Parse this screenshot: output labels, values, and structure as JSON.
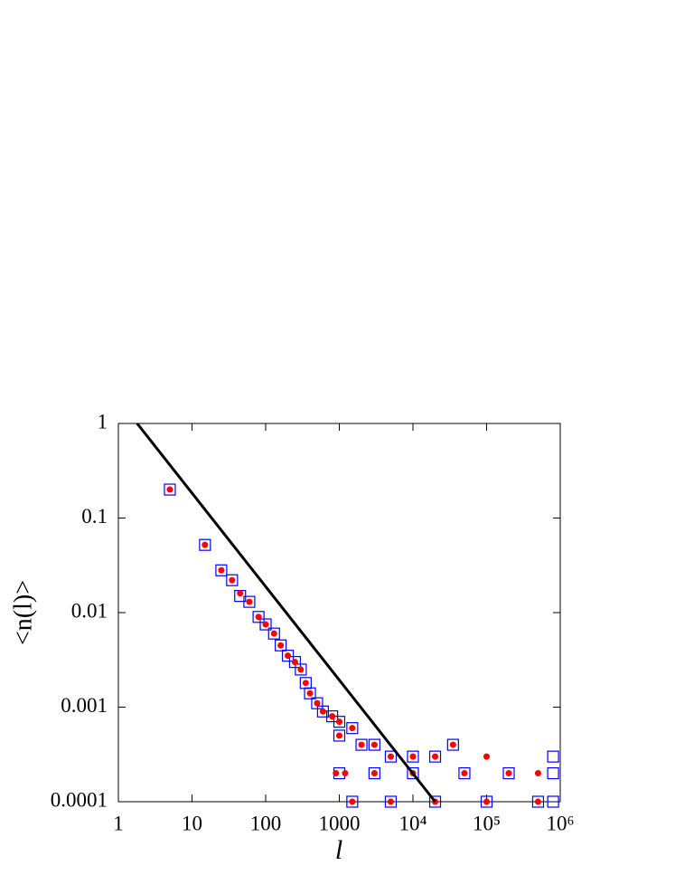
{
  "chart_data": {
    "type": "scatter",
    "xlabel": "l",
    "ylabel": "<n(l)>",
    "xscale": "log",
    "yscale": "log",
    "xlim": [
      1,
      1000000
    ],
    "ylim": [
      0.0001,
      1
    ],
    "xticks": [
      1,
      10,
      100,
      1000,
      {
        "value": 10000,
        "label": "10⁴"
      },
      {
        "value": 100000,
        "label": "10⁵"
      },
      {
        "value": 1000000,
        "label": "10⁶"
      }
    ],
    "yticks": [
      1,
      0.1,
      0.01,
      0.001,
      0.0001
    ],
    "series": [
      {
        "type": "scatter",
        "marker": "square",
        "color": "#0000ff",
        "x": [
          5,
          15,
          25,
          35,
          45,
          60,
          80,
          100,
          130,
          160,
          200,
          250,
          300,
          350,
          400,
          500,
          600,
          800,
          1000,
          1000,
          1500,
          2000,
          3000,
          5000,
          10000,
          20000,
          35000,
          800000,
          1000,
          3000,
          10000,
          50000,
          200000,
          800000,
          1500,
          5000,
          20000,
          100000,
          500000,
          800000
        ],
        "values": [
          0.2,
          0.052,
          0.028,
          0.022,
          0.015,
          0.013,
          0.009,
          0.0075,
          0.006,
          0.0045,
          0.0035,
          0.003,
          0.0025,
          0.0018,
          0.0014,
          0.0011,
          0.0009,
          0.0008,
          0.0007,
          0.0005,
          0.0006,
          0.0004,
          0.0004,
          0.0003,
          0.0003,
          0.0003,
          0.0004,
          0.0003,
          0.0002,
          0.0002,
          0.0002,
          0.0002,
          0.0002,
          0.0002,
          0.0001,
          0.0001,
          0.0001,
          0.0001,
          0.0001,
          0.0001
        ]
      },
      {
        "type": "scatter",
        "marker": "circle",
        "color": "#ff0000",
        "x": [
          5,
          15,
          25,
          35,
          45,
          60,
          80,
          100,
          130,
          160,
          200,
          250,
          300,
          350,
          400,
          500,
          600,
          800,
          1000,
          1000,
          1500,
          2000,
          3000,
          5000,
          10000,
          20000,
          35000,
          100000,
          900,
          1200,
          3000,
          10000,
          50000,
          200000,
          500000,
          1500,
          5000,
          20000,
          100000,
          500000
        ],
        "values": [
          0.2,
          0.052,
          0.028,
          0.022,
          0.016,
          0.013,
          0.009,
          0.0075,
          0.006,
          0.0045,
          0.0035,
          0.003,
          0.0025,
          0.0018,
          0.0014,
          0.0011,
          0.0009,
          0.0008,
          0.0007,
          0.0005,
          0.0006,
          0.0004,
          0.0004,
          0.0003,
          0.0003,
          0.0003,
          0.0004,
          0.0003,
          0.0002,
          0.0002,
          0.0002,
          0.0002,
          0.0002,
          0.0002,
          0.0002,
          0.0001,
          0.0001,
          0.0001,
          0.0001,
          0.0001
        ]
      },
      {
        "type": "line",
        "color": "#000000",
        "x": [
          1.8,
          20000
        ],
        "values": [
          1,
          0.0001
        ]
      }
    ]
  }
}
